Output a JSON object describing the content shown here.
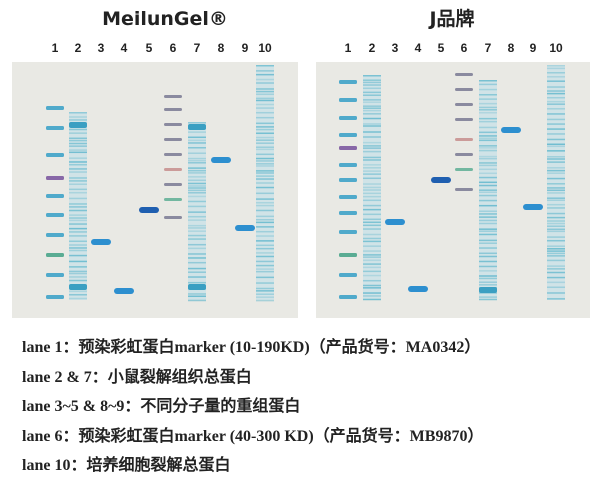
{
  "gels": [
    {
      "title": "MeilunGel®",
      "lanes": [
        "1",
        "2",
        "3",
        "4",
        "5",
        "6",
        "7",
        "8",
        "9",
        "10"
      ]
    },
    {
      "title": "J品牌",
      "lanes": [
        "1",
        "2",
        "3",
        "4",
        "5",
        "6",
        "7",
        "8",
        "9",
        "10"
      ]
    }
  ],
  "captions": [
    "lane 1：预染彩虹蛋白marker (10-190KD)（产品货号：MA0342）",
    "lane 2 & 7：小鼠裂解组织总蛋白",
    "lane 3~5 & 8~9：不同分子量的重组蛋白",
    "lane 6：预染彩虹蛋白marker (40-300 KD)（产品货号：MB9870）",
    "lane 10：培养细胞裂解总蛋白"
  ]
}
